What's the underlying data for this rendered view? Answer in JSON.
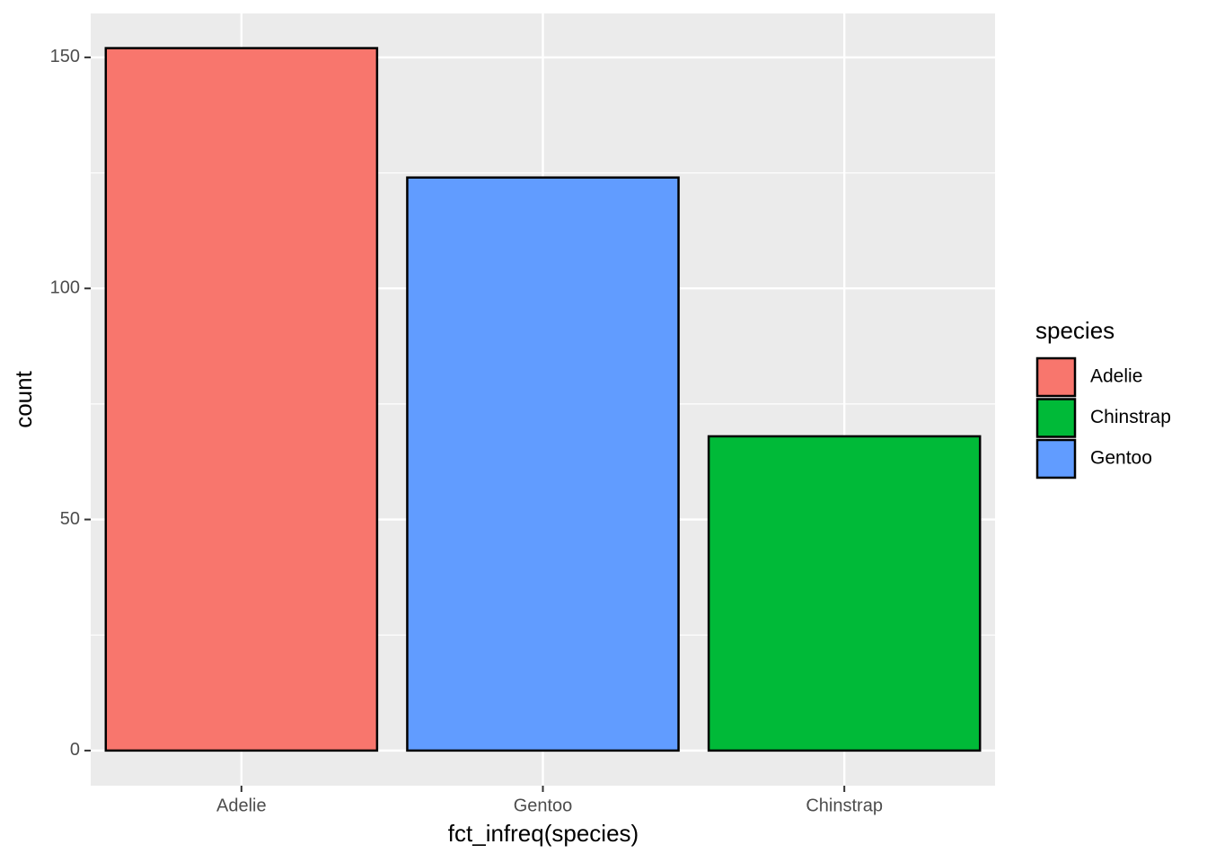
{
  "chart_data": {
    "type": "bar",
    "x_label": "fct_infreq(species)",
    "y_label": "count",
    "categories": [
      "Adelie",
      "Gentoo",
      "Chinstrap"
    ],
    "values": [
      152,
      124,
      68
    ],
    "ylim": [
      -7.6,
      159.5
    ],
    "yticks": [
      0,
      50,
      100,
      150
    ],
    "minor_yticks": [
      25,
      75,
      125
    ],
    "grid": true,
    "legend": {
      "title": "species",
      "position": "right",
      "entries": [
        {
          "name": "Adelie",
          "color": "#f8766d"
        },
        {
          "name": "Chinstrap",
          "color": "#00ba38"
        },
        {
          "name": "Gentoo",
          "color": "#619cff"
        }
      ]
    }
  }
}
